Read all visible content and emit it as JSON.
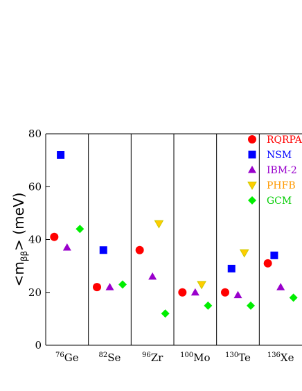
{
  "chart_data": {
    "type": "scatter",
    "title": "",
    "ylabel": {
      "prefix": "<m",
      "sub": "ββ",
      "suffix": "> (meV)"
    },
    "ylim": [
      0,
      80
    ],
    "yticks": [
      0,
      20,
      40,
      60,
      80
    ],
    "grid": false,
    "legend_placement": "top-right",
    "categories": [
      {
        "mass": "76",
        "element": "Ge"
      },
      {
        "mass": "82",
        "element": "Se"
      },
      {
        "mass": "96",
        "element": "Zr"
      },
      {
        "mass": "100",
        "element": "Mo"
      },
      {
        "mass": "130",
        "element": "Te"
      },
      {
        "mass": "136",
        "element": "Xe"
      }
    ],
    "series": [
      {
        "name": "RQRPA",
        "marker": "circle",
        "color": "#ff0000",
        "values": [
          41,
          22,
          36,
          20,
          20,
          31
        ]
      },
      {
        "name": "NSM",
        "marker": "square",
        "color": "#0000ff",
        "values": [
          72,
          36,
          null,
          null,
          29,
          34
        ]
      },
      {
        "name": "IBM-2",
        "marker": "triangle-up",
        "color": "#9900cc",
        "values": [
          37,
          22,
          26,
          20,
          19,
          22
        ]
      },
      {
        "name": "PHFB",
        "marker": "triangle-down",
        "color": "#ffcc00",
        "values": [
          null,
          null,
          46,
          23,
          35,
          null
        ]
      },
      {
        "name": "GCM",
        "marker": "diamond",
        "color": "#00ee00",
        "values": [
          44,
          23,
          12,
          15,
          15,
          18
        ]
      }
    ],
    "legend_text_colors": [
      "#ff0000",
      "#0000ff",
      "#9900cc",
      "#ff9900",
      "#00cc00"
    ],
    "legend_marker_outline": {
      "PHFB": "#cccc00"
    }
  }
}
